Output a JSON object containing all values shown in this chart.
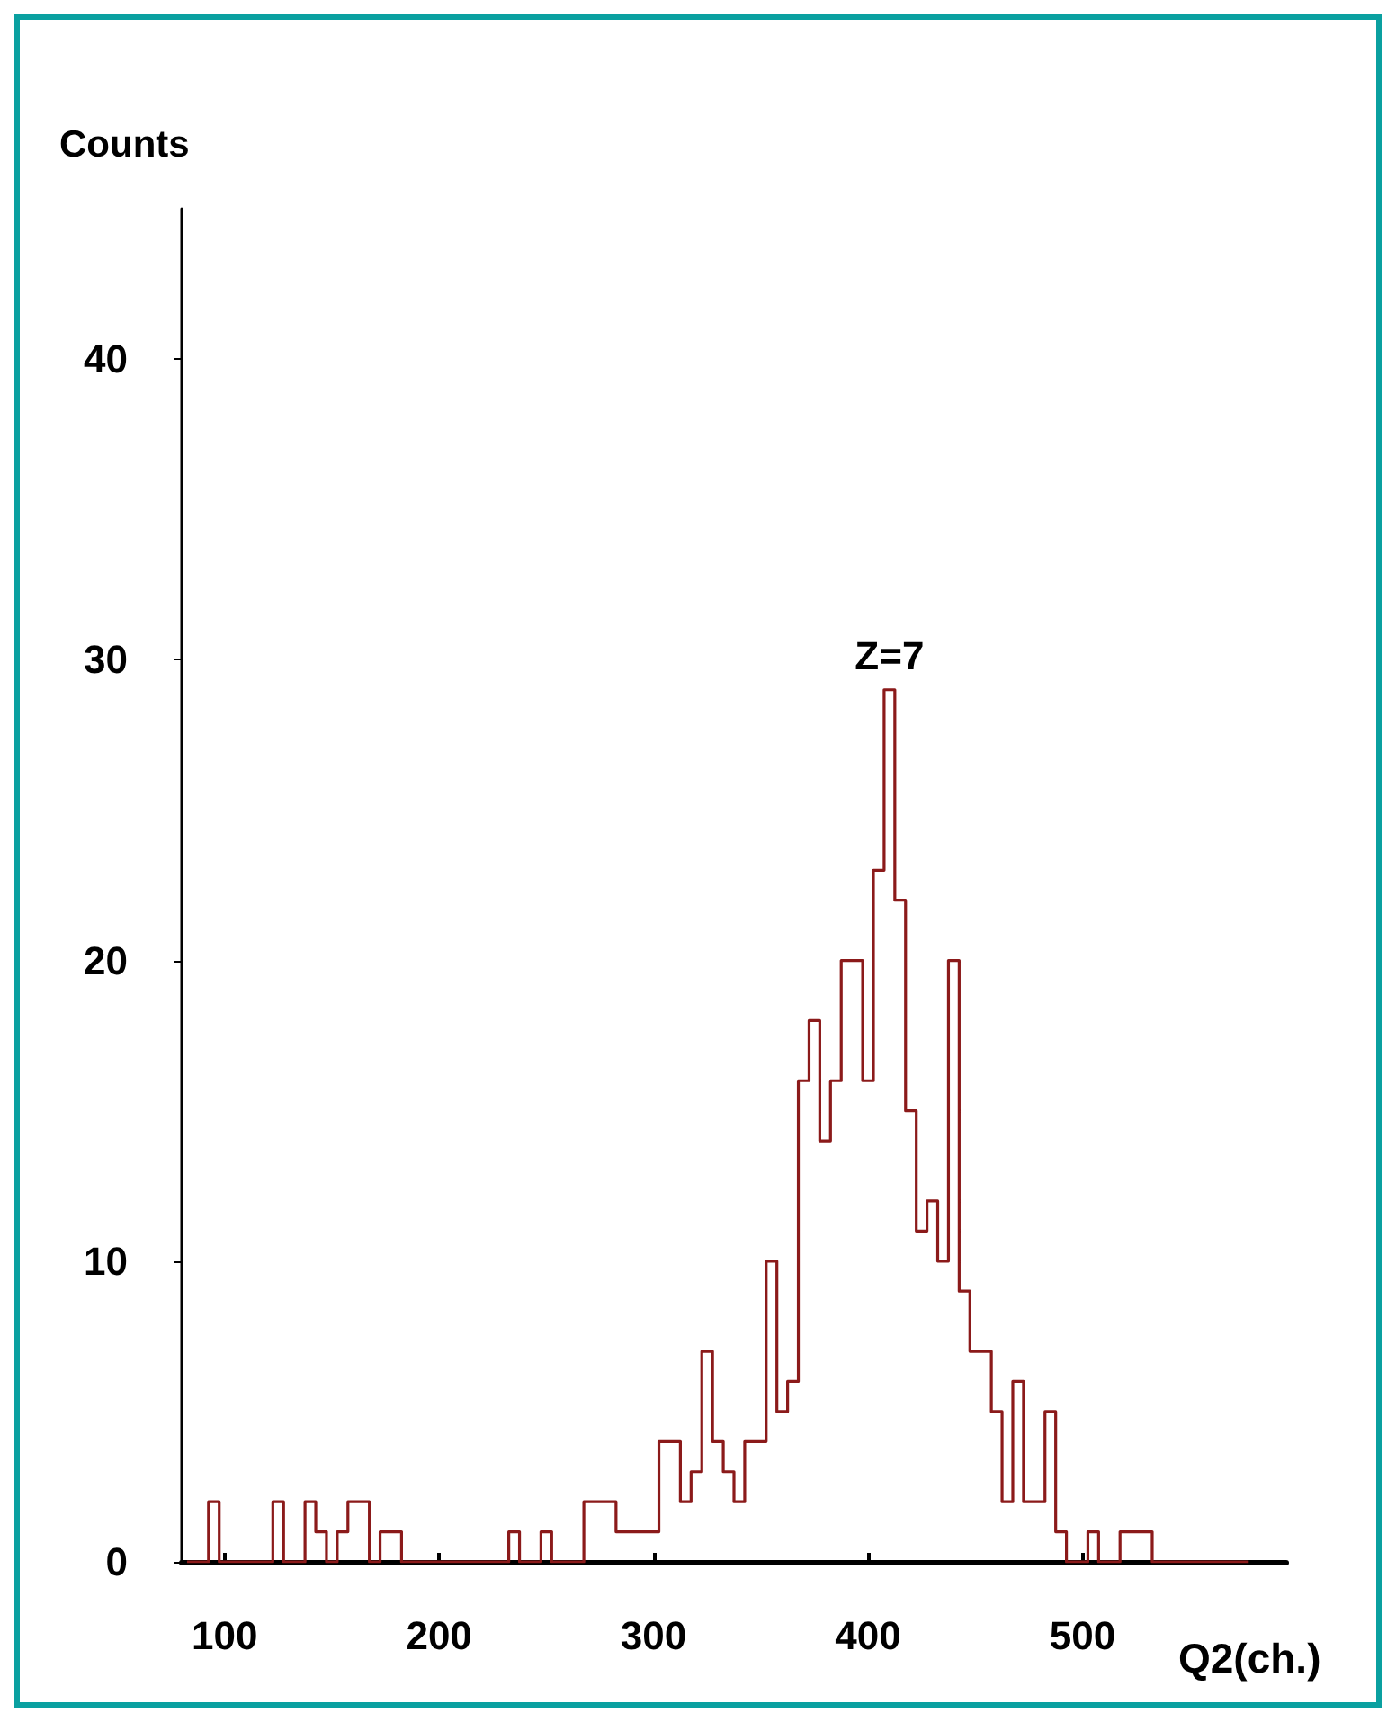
{
  "chart_data": {
    "type": "histogram",
    "xlabel": "Q2(ch.)",
    "ylabel": "Counts",
    "color": "#8b1a1a",
    "bins": [
      82.5,
      87.5,
      92.5,
      97.5,
      102.5,
      107.5,
      112.5,
      117.5,
      122.5,
      127.5,
      132.5,
      137.5,
      142.5,
      147.5,
      152.5,
      157.5,
      162.5,
      167.5,
      172.5,
      177.5,
      182.5,
      187.5,
      192.5,
      197.5,
      202.5,
      207.5,
      212.5,
      217.5,
      222.5,
      227.5,
      232.5,
      237.5,
      242.5,
      247.5,
      252.5,
      257.5,
      262.5,
      267.5,
      272.5,
      277.5,
      282.5,
      287.5,
      292.5,
      297.5,
      302.5,
      307.5,
      312.5,
      317.5,
      322.5,
      327.5,
      332.5,
      337.5,
      342.5,
      347.5,
      352.5,
      357.5,
      362.5,
      367.5,
      372.5,
      377.5,
      382.5,
      387.5,
      392.5,
      397.5,
      402.5,
      407.5,
      412.5,
      417.5,
      422.5,
      427.5,
      432.5,
      437.5,
      442.5,
      447.5,
      452.5,
      457.5,
      462.5,
      467.5,
      472.5,
      477.5,
      482.5,
      487.5,
      492.5,
      497.5,
      502.5,
      507.5,
      512.5,
      517.5,
      522.5,
      527.5,
      532.5,
      537.5,
      542.5,
      547.5,
      552.5,
      557.5,
      562.5,
      567.5,
      572.5,
      577.5
    ],
    "values": [
      0,
      0,
      2,
      0,
      0,
      0,
      0,
      0,
      2,
      0,
      0,
      2,
      1,
      0,
      1,
      2,
      2,
      0,
      1,
      1,
      0,
      0,
      0,
      0,
      0,
      0,
      0,
      0,
      0,
      0,
      1,
      0,
      0,
      1,
      0,
      0,
      0,
      2,
      2,
      2,
      1,
      1,
      1,
      1,
      4,
      4,
      2,
      3,
      7,
      4,
      3,
      2,
      4,
      4,
      10,
      5,
      6,
      16,
      18,
      14,
      16,
      20,
      20,
      16,
      23,
      29,
      22,
      15,
      11,
      12,
      10,
      20,
      9,
      7,
      7,
      5,
      2,
      6,
      2,
      2,
      5,
      1,
      0,
      0,
      1,
      0,
      0,
      1,
      1,
      1,
      0,
      0,
      0,
      0,
      0,
      0,
      0,
      0,
      0
    ],
    "xlim": [
      80,
      595
    ],
    "xticks": [
      100,
      200,
      300,
      400,
      500
    ],
    "ylim": [
      0,
      45
    ],
    "yticks": [
      0,
      10,
      20,
      30,
      40
    ],
    "annotations": [
      {
        "text": "Z=7",
        "x": 410,
        "y": 29
      }
    ],
    "grid": false
  }
}
